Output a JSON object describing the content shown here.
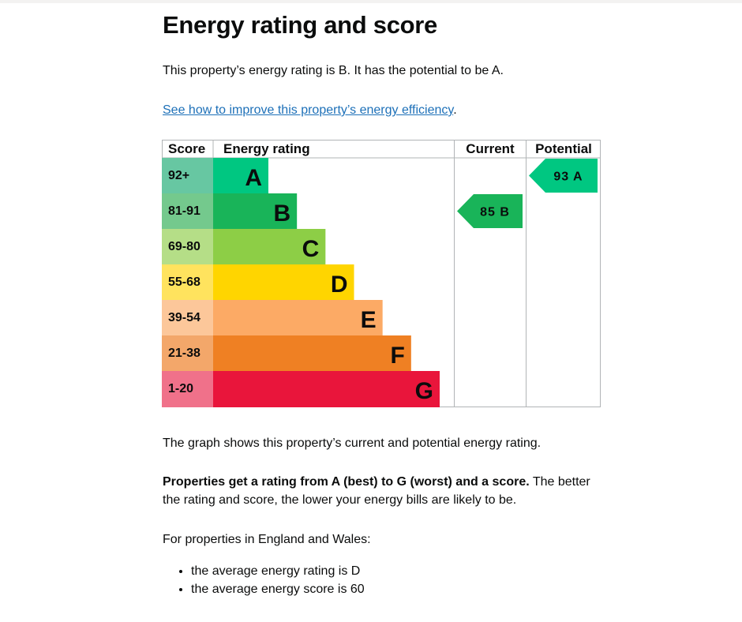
{
  "page": {
    "title": "Energy rating and score",
    "intro": "This property’s energy rating is B. It has the potential to be A.",
    "improve_link": "See how to improve this property’s energy efficiency",
    "improve_link_suffix": ".",
    "graph_caption": "The graph shows this property’s current and potential energy rating.",
    "rating_info_bold": "Properties get a rating from A (best) to G (worst) and a score.",
    "rating_info_rest_line1": " The better",
    "rating_info_line2": "the rating and score, the lower your energy bills are likely to be.",
    "averages_intro": "For properties in England and Wales:",
    "averages": [
      "the average energy rating is D",
      "the average energy score is 60"
    ]
  },
  "chart_data": {
    "type": "table",
    "columns": [
      "Score",
      "Energy rating",
      "Current",
      "Potential"
    ],
    "bands": [
      {
        "score": "92+",
        "letter": "A",
        "color": "#00c781",
        "score_bg": "#67c7a2"
      },
      {
        "score": "81-91",
        "letter": "B",
        "color": "#19b459",
        "score_bg": "#74c98d"
      },
      {
        "score": "69-80",
        "letter": "C",
        "color": "#8dce46",
        "score_bg": "#b5de87"
      },
      {
        "score": "55-68",
        "letter": "D",
        "color": "#ffd500",
        "score_bg": "#ffe35e"
      },
      {
        "score": "39-54",
        "letter": "E",
        "color": "#fcaa65",
        "score_bg": "#fcc79a"
      },
      {
        "score": "21-38",
        "letter": "F",
        "color": "#ef8023",
        "score_bg": "#f3a76a"
      },
      {
        "score": "1-20",
        "letter": "G",
        "color": "#e9153b",
        "score_bg": "#f0718a"
      }
    ],
    "current": {
      "score": 85,
      "letter": "B",
      "label": "85 B",
      "color": "#19b459"
    },
    "potential": {
      "score": 93,
      "letter": "A",
      "label": "93 A",
      "color": "#00c781"
    }
  }
}
